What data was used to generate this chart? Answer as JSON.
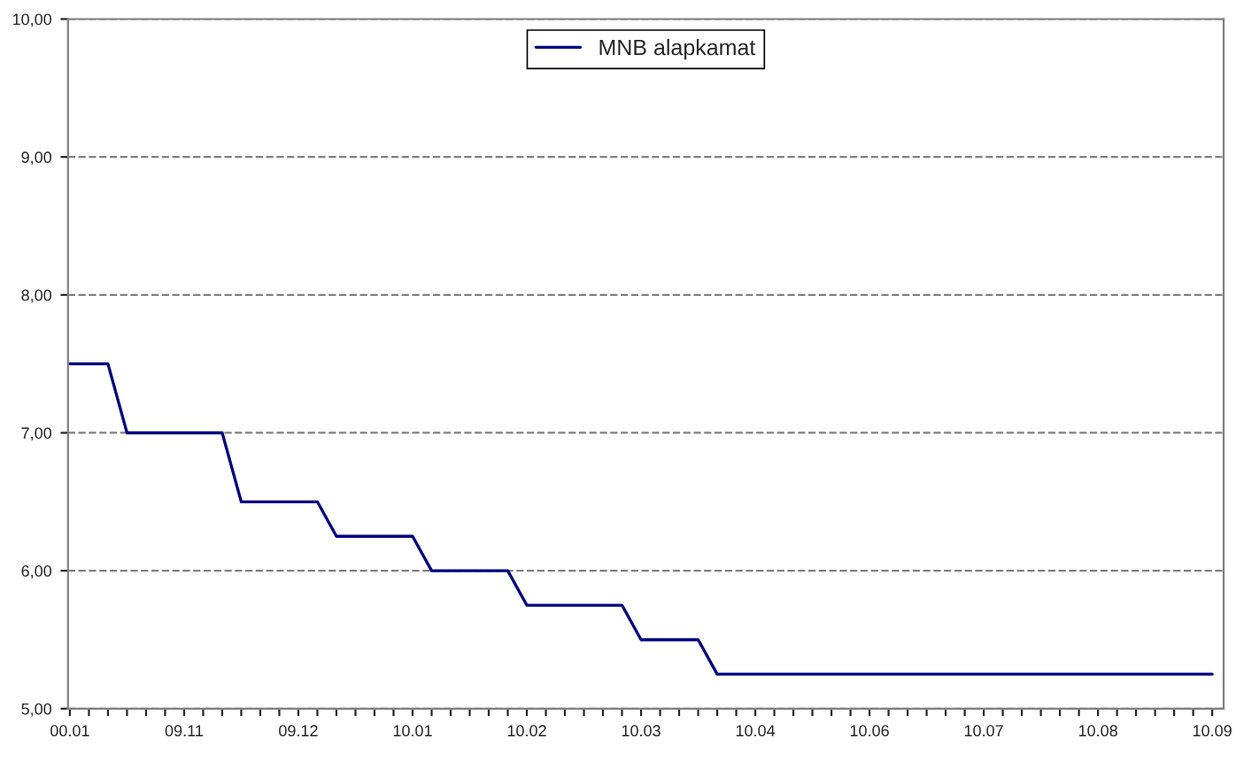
{
  "chart_data": {
    "type": "line",
    "categories": [
      "00.01",
      null,
      null,
      null,
      null,
      null,
      "09.11",
      null,
      null,
      null,
      null,
      null,
      "09.12",
      null,
      null,
      null,
      null,
      null,
      "10.01",
      null,
      null,
      null,
      null,
      null,
      "10.02",
      null,
      null,
      null,
      null,
      null,
      "10.03",
      null,
      null,
      null,
      null,
      null,
      "10.04",
      null,
      null,
      null,
      null,
      null,
      "10.06",
      null,
      null,
      null,
      null,
      null,
      "10.07",
      null,
      null,
      null,
      null,
      null,
      "10.08",
      null,
      null,
      null,
      null,
      null,
      "10.09"
    ],
    "series": [
      {
        "name": "MNB alapkamat",
        "color": "#000080",
        "values": [
          7.5,
          7.5,
          7.5,
          7.0,
          7.0,
          7.0,
          7.0,
          7.0,
          7.0,
          6.5,
          6.5,
          6.5,
          6.5,
          6.5,
          6.25,
          6.25,
          6.25,
          6.25,
          6.25,
          6.0,
          6.0,
          6.0,
          6.0,
          6.0,
          5.75,
          5.75,
          5.75,
          5.75,
          5.75,
          5.75,
          5.5,
          5.5,
          5.5,
          5.5,
          5.25,
          5.25,
          5.25,
          5.25,
          5.25,
          5.25,
          5.25,
          5.25,
          5.25,
          5.25,
          5.25,
          5.25,
          5.25,
          5.25,
          5.25,
          5.25,
          5.25,
          5.25,
          5.25,
          5.25,
          5.25,
          5.25,
          5.25,
          5.25,
          5.25,
          5.25,
          5.25
        ]
      }
    ],
    "ylim": [
      5,
      10
    ],
    "yticks": [
      {
        "value": 5,
        "label": "5,00"
      },
      {
        "value": 6,
        "label": "6,00"
      },
      {
        "value": 7,
        "label": "7,00"
      },
      {
        "value": 8,
        "label": "8,00"
      },
      {
        "value": 9,
        "label": "9,00"
      },
      {
        "value": 10,
        "label": "10,00"
      }
    ],
    "grid": "y",
    "legend": "top",
    "line_style": "solid",
    "marker": "none"
  }
}
